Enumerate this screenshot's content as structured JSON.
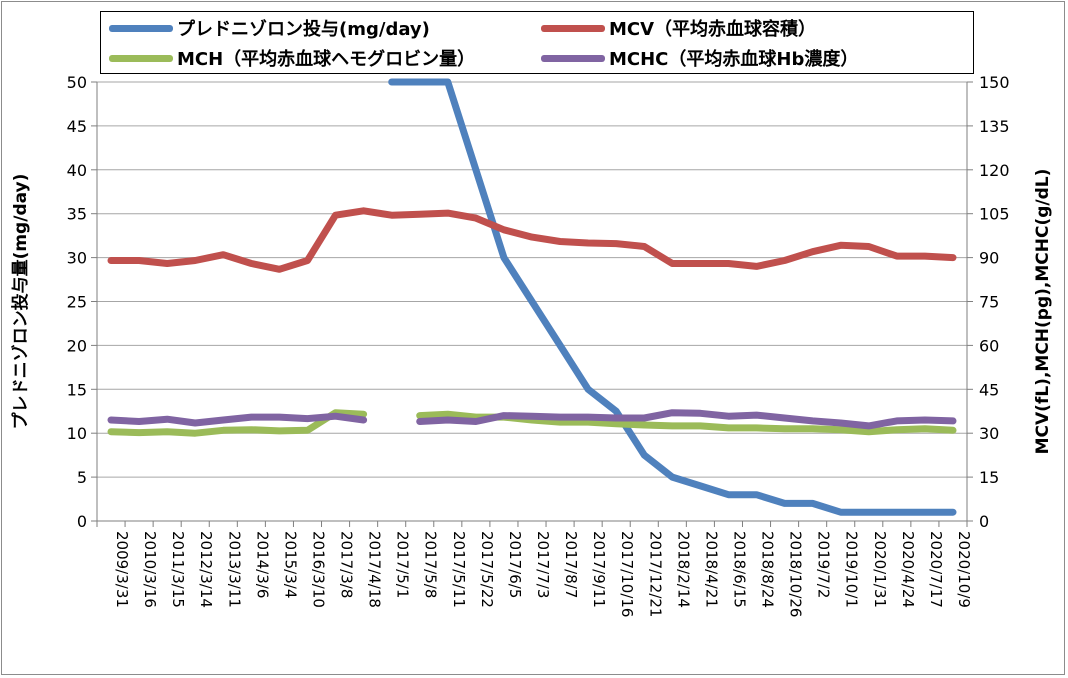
{
  "chart_data": {
    "type": "line",
    "xlabel": "",
    "ylabel_left": "プレドニゾロン投与量(mg/day)",
    "ylabel_right": "MCV(fL),MCH(pg),MCHC(g/dL)",
    "ylim_left": [
      0,
      50
    ],
    "ylim_right": [
      0,
      150
    ],
    "yticks_left": [
      "0",
      "5",
      "10",
      "15",
      "20",
      "25",
      "30",
      "35",
      "40",
      "45",
      "50"
    ],
    "yticks_right": [
      "0",
      "15",
      "30",
      "45",
      "60",
      "75",
      "90",
      "105",
      "120",
      "135",
      "150"
    ],
    "grid": "horizontal",
    "legend_position": "top",
    "categories": [
      "2009/3/31",
      "2010/3/16",
      "2011/3/15",
      "2012/3/14",
      "2013/3/11",
      "2014/3/6",
      "2015/3/4",
      "2016/3/10",
      "2017/3/8",
      "2017/4/18",
      "2017/5/1",
      "2017/5/8",
      "2017/5/11",
      "2017/5/22",
      "2017/6/5",
      "2017/7/3",
      "2017/8/7",
      "2017/9/11",
      "2017/10/16",
      "2017/12/21",
      "2018/2/14",
      "2018/4/21",
      "2018/6/15",
      "2018/8/24",
      "2018/10/26",
      "2019/7/2",
      "2019/10/1",
      "2020/1/31",
      "2020/4/24",
      "2020/7/17",
      "2020/10/9"
    ],
    "series": [
      {
        "name": "プレドニゾロン投与(mg/day)",
        "axis": "left",
        "color": "#4f81bd",
        "values": [
          null,
          null,
          null,
          null,
          null,
          null,
          null,
          null,
          null,
          null,
          50,
          50,
          50,
          40,
          30,
          25,
          20,
          15,
          12.5,
          7.5,
          5,
          4,
          3,
          3,
          2,
          2,
          1,
          1,
          1,
          1,
          1
        ]
      },
      {
        "name": "MCV（平均赤血球容積）",
        "axis": "right",
        "color": "#c0504d",
        "values": [
          89,
          89,
          88,
          89,
          91,
          88,
          86,
          89,
          104.5,
          106,
          104.5,
          104.8,
          105.2,
          103.5,
          99.5,
          97,
          95.5,
          95,
          94.8,
          93.8,
          88,
          88,
          88,
          87,
          89,
          92,
          94.2,
          93.8,
          90.5,
          90.5,
          90
        ]
      },
      {
        "name": "MCH（平均赤血球ヘモグロビン量）",
        "axis": "right",
        "color": "#9bbb59",
        "values": [
          30.5,
          30.2,
          30.5,
          30,
          31,
          31.2,
          30.8,
          31,
          37,
          36.5,
          null,
          36,
          36.5,
          35.5,
          35.5,
          34.5,
          33.8,
          33.8,
          33.2,
          32.8,
          32.5,
          32.5,
          31.8,
          31.8,
          31.5,
          31.5,
          31.2,
          30.5,
          31.2,
          31.5,
          31
        ]
      },
      {
        "name": "MCHC（平均赤血球Hb濃度）",
        "axis": "right",
        "color": "#8064a2",
        "values": [
          34.5,
          34,
          34.8,
          33.5,
          34.5,
          35.5,
          35.5,
          35,
          35.8,
          34.5,
          null,
          34,
          34.5,
          34,
          36,
          35.8,
          35.5,
          35.5,
          35.2,
          35.2,
          37,
          36.8,
          35.8,
          36.2,
          35.2,
          34.2,
          33.5,
          32.5,
          34.2,
          34.5,
          34.2
        ]
      }
    ]
  }
}
